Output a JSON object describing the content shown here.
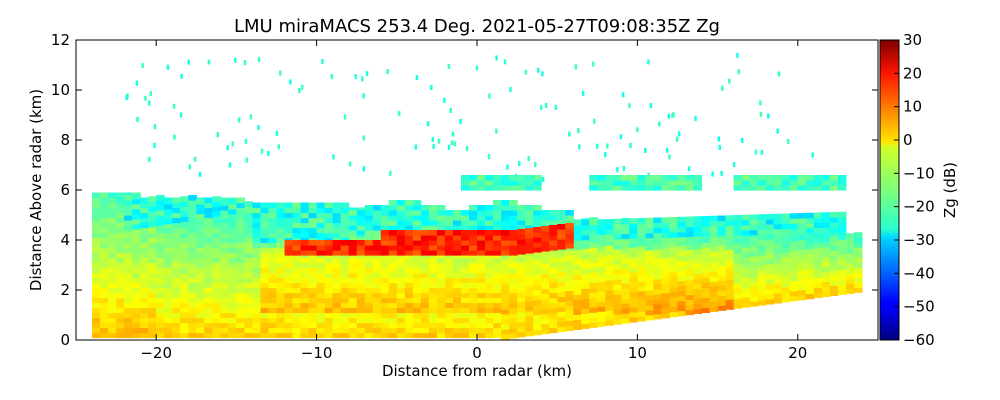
{
  "chart_data": {
    "type": "heatmap",
    "title": "LMU miraMACS 253.4 Deg. 2021-05-27T09:08:35Z  Zg",
    "xlabel": "Distance from radar (km)",
    "ylabel": "Distance Above radar  (km)",
    "xlim": [
      -25,
      25
    ],
    "ylim": [
      0,
      12
    ],
    "xticks": [
      -20,
      -10,
      0,
      10,
      20
    ],
    "xtick_labels": [
      "−20",
      "−10",
      "0",
      "10",
      "20"
    ],
    "yticks": [
      0,
      2,
      4,
      6,
      8,
      10,
      12
    ],
    "ytick_labels": [
      "0",
      "2",
      "4",
      "6",
      "8",
      "10",
      "12"
    ],
    "colorbar": {
      "label": "Zg (dB)",
      "range": [
        -60,
        30
      ],
      "ticks": [
        30,
        20,
        10,
        0,
        -10,
        -20,
        -30,
        -40,
        -50,
        -60
      ],
      "tick_labels": [
        "30",
        "20",
        "10",
        "0",
        "−10",
        "−20",
        "−30",
        "−40",
        "−50",
        "−60"
      ],
      "colormap": "jet"
    },
    "regions": [
      {
        "name": "lower echo",
        "x_range": [
          -24,
          24
        ],
        "top_km": [
          5.8,
          4.2
        ],
        "value_range_dB": [
          -25,
          15
        ]
      },
      {
        "name": "bright band",
        "x_range": [
          -12,
          6
        ],
        "height_km": [
          3.4,
          4.4
        ],
        "value_range_dB": [
          10,
          20
        ]
      },
      {
        "name": "upper cloud",
        "x_range": [
          -23,
          23
        ],
        "height_km": [
          4.0,
          6.0
        ],
        "value_range_dB": [
          -30,
          -15
        ]
      },
      {
        "name": "elevated layer",
        "x_range": [
          7,
          23
        ],
        "height_km": [
          6.0,
          6.6
        ],
        "value_range_dB": [
          -25,
          -15
        ]
      },
      {
        "name": "scattered echoes",
        "x_range": [
          -22,
          21
        ],
        "height_km": [
          6.5,
          11.5
        ],
        "value_range_dB": [
          -25,
          -20
        ]
      }
    ]
  }
}
